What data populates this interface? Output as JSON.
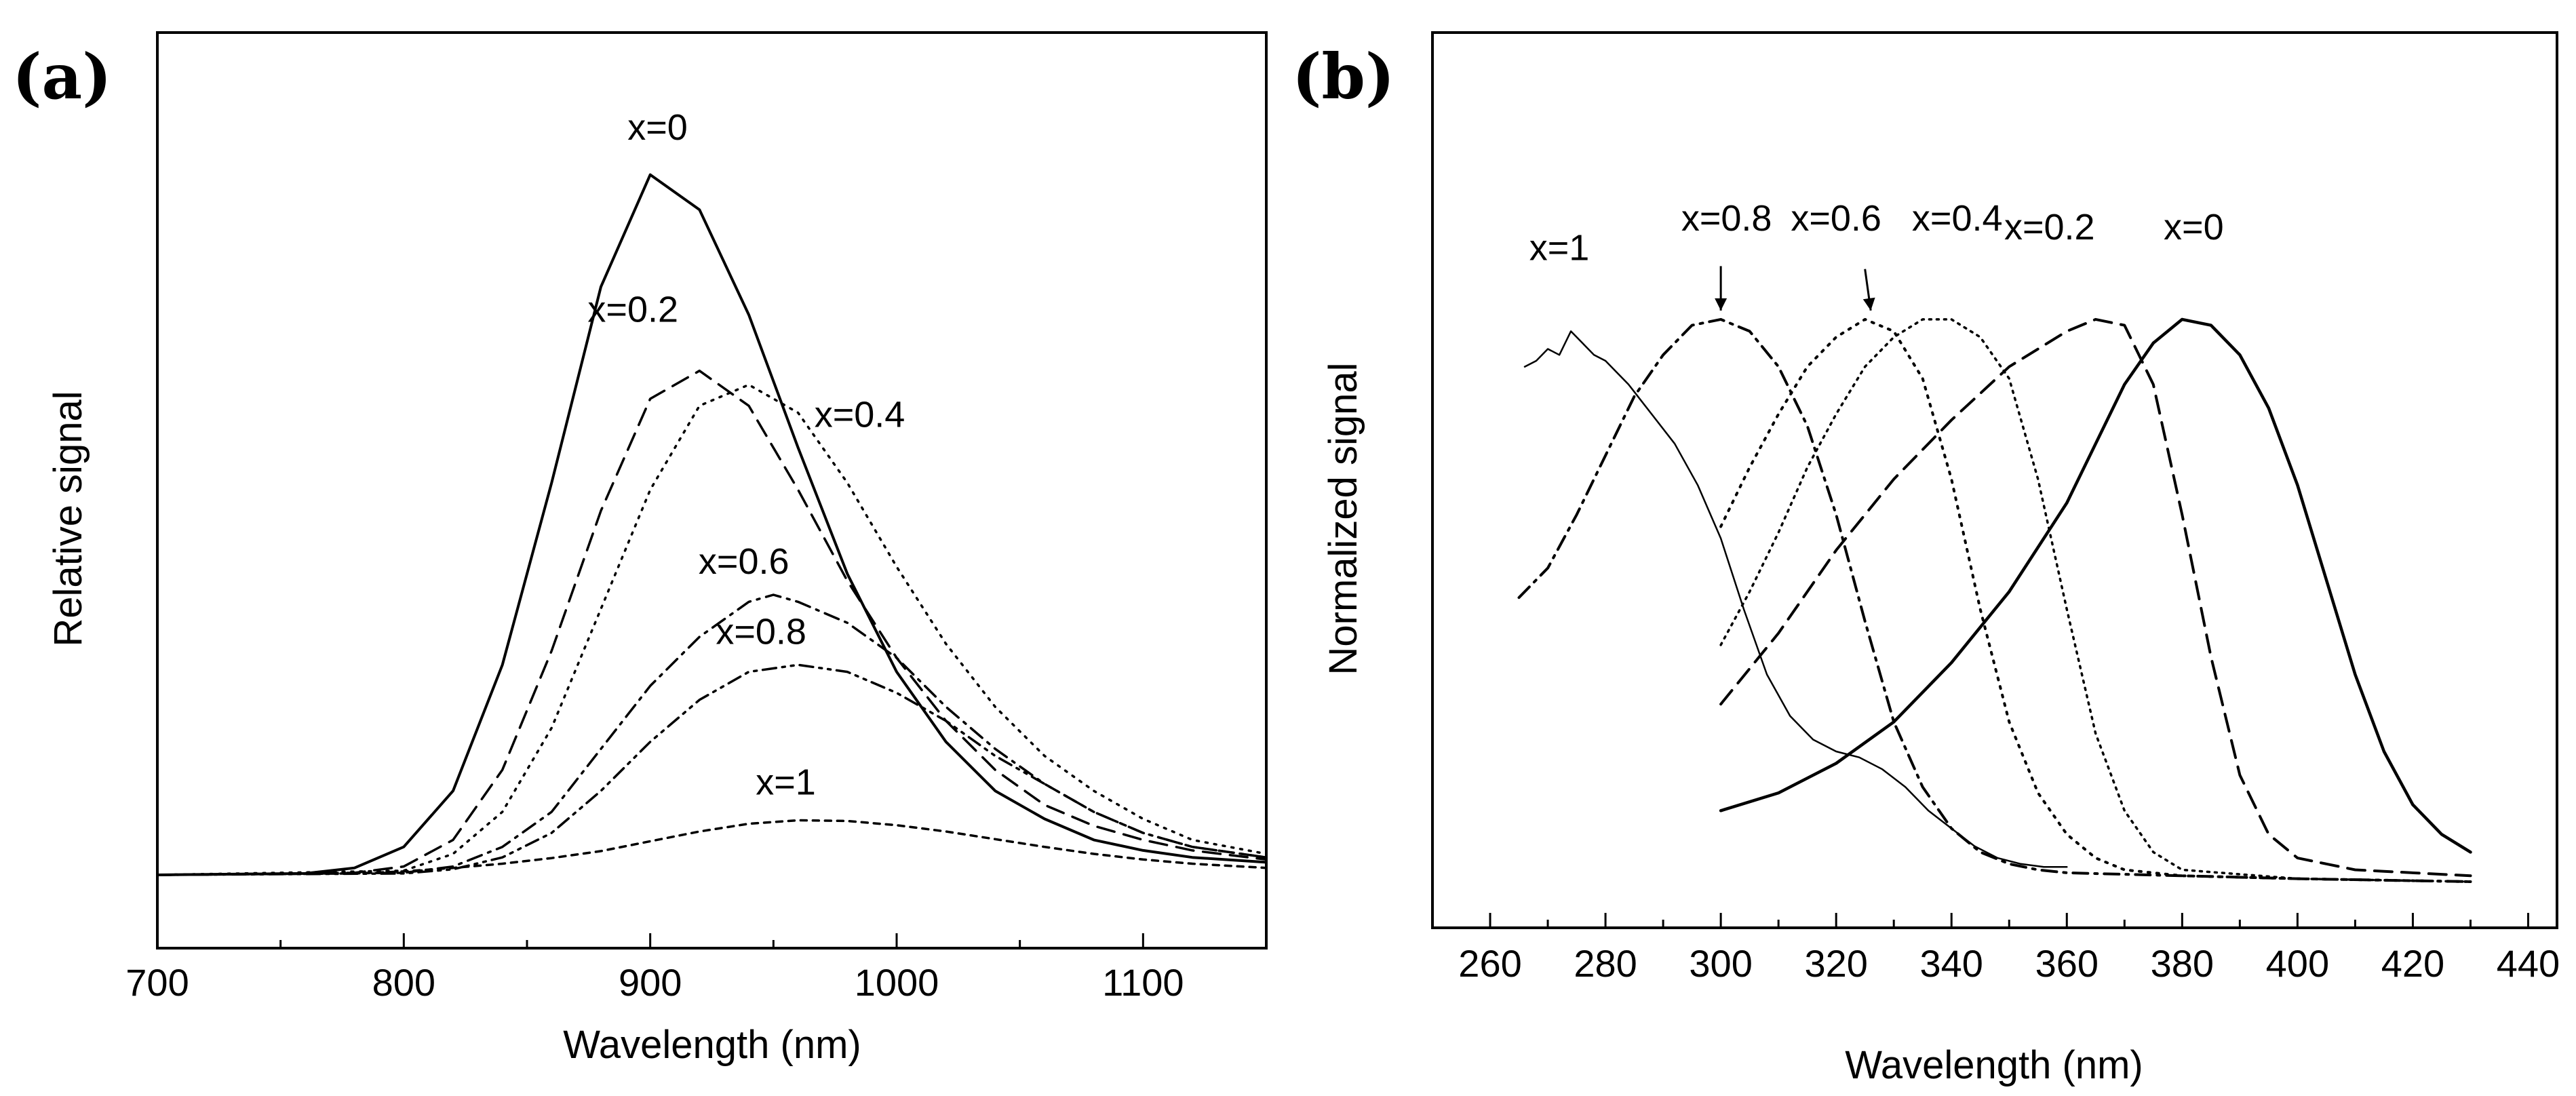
{
  "chart_data": [
    {
      "panel_label": "(a)",
      "type": "line",
      "title": "",
      "xlabel": "Wavelength (nm)",
      "ylabel": "Relative signal",
      "xlim": [
        700,
        1150
      ],
      "ylim": [
        0,
        1.08
      ],
      "grid": false,
      "x_ticks": [
        700,
        800,
        900,
        1000,
        1100
      ],
      "x_tick_labels": [
        "700",
        "800",
        "900",
        "1000",
        "1100"
      ],
      "series": [
        {
          "name": "x=0",
          "label": "x=0",
          "style": "solid",
          "width": 4,
          "label_at": [
            903,
            1.05
          ],
          "x": [
            700,
            760,
            780,
            800,
            820,
            840,
            860,
            880,
            900,
            920,
            940,
            960,
            980,
            1000,
            1020,
            1040,
            1060,
            1080,
            1100,
            1120,
            1150
          ],
          "y": [
            0,
            0.002,
            0.01,
            0.04,
            0.12,
            0.3,
            0.56,
            0.84,
            1.0,
            0.95,
            0.8,
            0.61,
            0.43,
            0.29,
            0.19,
            0.12,
            0.08,
            0.05,
            0.035,
            0.025,
            0.018
          ]
        },
        {
          "name": "x=0.2",
          "label": "x=0.2",
          "style": "dashed",
          "width": 3.5,
          "label_at": [
            893,
            0.79
          ],
          "x": [
            700,
            780,
            800,
            820,
            840,
            860,
            880,
            900,
            920,
            940,
            960,
            980,
            1000,
            1020,
            1040,
            1060,
            1080,
            1100,
            1120,
            1150
          ],
          "y": [
            0,
            0.003,
            0.012,
            0.05,
            0.15,
            0.32,
            0.52,
            0.68,
            0.72,
            0.67,
            0.55,
            0.42,
            0.31,
            0.22,
            0.15,
            0.1,
            0.07,
            0.05,
            0.035,
            0.022
          ]
        },
        {
          "name": "x=0.4",
          "label": "x=0.4",
          "style": "dotted",
          "width": 3.5,
          "label_at": [
            985,
            0.64
          ],
          "x": [
            700,
            800,
            820,
            840,
            860,
            880,
            900,
            920,
            940,
            960,
            980,
            1000,
            1020,
            1040,
            1060,
            1080,
            1100,
            1120,
            1150
          ],
          "y": [
            0,
            0.006,
            0.03,
            0.09,
            0.21,
            0.38,
            0.55,
            0.67,
            0.7,
            0.66,
            0.56,
            0.44,
            0.33,
            0.24,
            0.17,
            0.12,
            0.08,
            0.05,
            0.03
          ]
        },
        {
          "name": "x=0.6",
          "label": "x=0.6",
          "style": "dashdot",
          "width": 3.5,
          "label_at": [
            938,
            0.43
          ],
          "x": [
            700,
            800,
            820,
            840,
            860,
            880,
            900,
            920,
            940,
            950,
            960,
            980,
            1000,
            1020,
            1040,
            1060,
            1080,
            1100,
            1120,
            1150
          ],
          "y": [
            0,
            0.003,
            0.012,
            0.04,
            0.09,
            0.18,
            0.27,
            0.34,
            0.39,
            0.4,
            0.39,
            0.36,
            0.31,
            0.24,
            0.18,
            0.13,
            0.09,
            0.06,
            0.04,
            0.025
          ]
        },
        {
          "name": "x=0.8",
          "label": "x=0.8",
          "style": "dashdotdot",
          "width": 3.5,
          "label_at": [
            945,
            0.33
          ],
          "x": [
            700,
            800,
            820,
            840,
            860,
            880,
            900,
            920,
            940,
            960,
            980,
            1000,
            1020,
            1040,
            1060,
            1080,
            1100,
            1120,
            1150
          ],
          "y": [
            0,
            0.002,
            0.008,
            0.025,
            0.06,
            0.12,
            0.19,
            0.25,
            0.29,
            0.3,
            0.29,
            0.26,
            0.22,
            0.17,
            0.13,
            0.09,
            0.06,
            0.04,
            0.025
          ]
        },
        {
          "name": "x=1",
          "label": "x=1",
          "style": "dashed-short",
          "width": 3.5,
          "label_at": [
            955,
            0.115
          ],
          "x": [
            700,
            780,
            800,
            820,
            840,
            860,
            880,
            900,
            920,
            940,
            960,
            980,
            1000,
            1020,
            1040,
            1060,
            1080,
            1100,
            1120,
            1150
          ],
          "y": [
            0,
            0.002,
            0.005,
            0.01,
            0.016,
            0.024,
            0.034,
            0.048,
            0.062,
            0.073,
            0.078,
            0.077,
            0.071,
            0.062,
            0.051,
            0.04,
            0.03,
            0.022,
            0.016,
            0.01
          ]
        }
      ]
    },
    {
      "panel_label": "(b)",
      "type": "line",
      "title": "",
      "xlabel": "Wavelength (nm)",
      "ylabel": "Normalized signal",
      "xlim": [
        250,
        445
      ],
      "ylim": [
        0,
        1.1
      ],
      "grid": false,
      "x_ticks": [
        260,
        280,
        300,
        320,
        340,
        360,
        380,
        400,
        420,
        440
      ],
      "x_tick_labels": [
        "260",
        "280",
        "300",
        "320",
        "340",
        "360",
        "380",
        "400",
        "420",
        "440"
      ],
      "series": [
        {
          "name": "x=1",
          "label": "x=1",
          "style": "thin-solid",
          "width": 2.5,
          "label_at": [
            272,
            1.05
          ],
          "x": [
            266,
            268,
            270,
            272,
            274,
            276,
            278,
            280,
            284,
            288,
            292,
            296,
            300,
            304,
            308,
            312,
            316,
            320,
            324,
            328,
            332,
            336,
            340,
            344,
            348,
            352,
            356,
            360
          ],
          "y": [
            0.87,
            0.88,
            0.9,
            0.89,
            0.93,
            0.91,
            0.89,
            0.88,
            0.84,
            0.79,
            0.74,
            0.67,
            0.58,
            0.46,
            0.35,
            0.28,
            0.24,
            0.22,
            0.21,
            0.19,
            0.16,
            0.12,
            0.09,
            0.06,
            0.04,
            0.03,
            0.025,
            0.025
          ]
        },
        {
          "name": "x=0.8",
          "label": "x=0.8",
          "style": "dashdot",
          "width": 4,
          "label_at": [
            301,
            1.1
          ],
          "x": [
            265,
            270,
            275,
            280,
            285,
            290,
            295,
            300,
            305,
            310,
            315,
            320,
            325,
            330,
            335,
            340,
            345,
            350,
            355,
            360,
            380,
            400,
            430
          ],
          "y": [
            0.48,
            0.53,
            0.62,
            0.72,
            0.82,
            0.89,
            0.94,
            0.95,
            0.93,
            0.87,
            0.77,
            0.62,
            0.44,
            0.27,
            0.16,
            0.09,
            0.05,
            0.03,
            0.02,
            0.015,
            0.01,
            0.005,
            0.0
          ]
        },
        {
          "name": "x=0.6",
          "label": "x=0.6",
          "style": "dotted",
          "width": 4,
          "label_at": [
            320,
            1.1
          ],
          "x": [
            300,
            305,
            310,
            315,
            320,
            325,
            330,
            335,
            340,
            345,
            350,
            355,
            360,
            365,
            370,
            380,
            400,
            430
          ],
          "y": [
            0.6,
            0.7,
            0.79,
            0.87,
            0.92,
            0.95,
            0.93,
            0.85,
            0.68,
            0.46,
            0.27,
            0.15,
            0.08,
            0.04,
            0.02,
            0.01,
            0.005,
            0.0
          ]
        },
        {
          "name": "x=0.4",
          "label": "x=0.4",
          "style": "dotted-fine",
          "width": 3.5,
          "label_at": [
            341,
            1.1
          ],
          "x": [
            300,
            305,
            310,
            315,
            320,
            325,
            330,
            335,
            340,
            345,
            350,
            355,
            360,
            365,
            370,
            375,
            380,
            400,
            430
          ],
          "y": [
            0.4,
            0.49,
            0.59,
            0.7,
            0.79,
            0.87,
            0.92,
            0.95,
            0.95,
            0.92,
            0.85,
            0.68,
            0.46,
            0.25,
            0.12,
            0.05,
            0.02,
            0.005,
            0.0
          ]
        },
        {
          "name": "x=0.2",
          "label": "x=0.2",
          "style": "dashed",
          "width": 4,
          "label_at": [
            357,
            1.085
          ],
          "x": [
            300,
            310,
            320,
            330,
            340,
            350,
            360,
            365,
            370,
            375,
            380,
            385,
            390,
            395,
            400,
            410,
            430
          ],
          "y": [
            0.3,
            0.42,
            0.56,
            0.68,
            0.78,
            0.87,
            0.93,
            0.95,
            0.94,
            0.84,
            0.62,
            0.38,
            0.18,
            0.08,
            0.04,
            0.02,
            0.01
          ]
        },
        {
          "name": "x=0",
          "label": "x=0",
          "style": "solid",
          "width": 4.5,
          "label_at": [
            382,
            1.085
          ],
          "x": [
            300,
            310,
            320,
            330,
            340,
            350,
            360,
            365,
            370,
            375,
            380,
            385,
            390,
            395,
            400,
            405,
            410,
            415,
            420,
            425,
            430
          ],
          "y": [
            0.12,
            0.15,
            0.2,
            0.27,
            0.37,
            0.49,
            0.64,
            0.74,
            0.84,
            0.91,
            0.95,
            0.94,
            0.89,
            0.8,
            0.67,
            0.51,
            0.35,
            0.22,
            0.13,
            0.08,
            0.05
          ]
        }
      ],
      "annotations": [
        {
          "text_anchor": "x=0.8",
          "from": [
            300,
            1.04
          ],
          "to": [
            300,
            0.965
          ]
        },
        {
          "text_anchor": "x=0.6",
          "from": [
            325,
            1.035
          ],
          "to": [
            326,
            0.965
          ]
        }
      ]
    }
  ]
}
